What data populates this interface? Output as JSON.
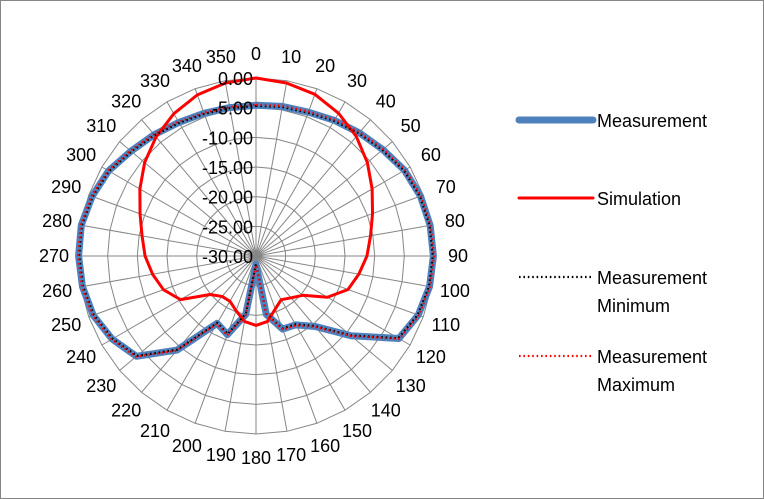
{
  "chart_data": {
    "type": "radar",
    "angles": [
      0,
      10,
      20,
      30,
      40,
      50,
      60,
      70,
      80,
      90,
      100,
      110,
      120,
      130,
      140,
      150,
      160,
      170,
      180,
      190,
      200,
      210,
      220,
      230,
      240,
      250,
      260,
      270,
      280,
      290,
      300,
      310,
      320,
      330,
      340,
      350
    ],
    "angle_labels": [
      "0",
      "10",
      "20",
      "30",
      "40",
      "50",
      "60",
      "70",
      "80",
      "90",
      "100",
      "110",
      "120",
      "130",
      "140",
      "150",
      "160",
      "170",
      "180",
      "190",
      "200",
      "210",
      "220",
      "230",
      "240",
      "250",
      "260",
      "270",
      "280",
      "290",
      "300",
      "310",
      "320",
      "330",
      "340",
      "350"
    ],
    "radial_ticks": [
      -30,
      -25,
      -20,
      -15,
      -10,
      -5,
      0
    ],
    "radial_tick_labels": [
      "-30.00",
      "-25.00",
      "-20.00",
      "-15.00",
      "-10.00",
      "-5.00",
      "0.00"
    ],
    "rlim": [
      -30,
      0
    ],
    "grid": true,
    "legend_position": "right",
    "series": [
      {
        "name": "Measurement",
        "color": "#4f81bd",
        "style": "thick",
        "values": [
          -4.6,
          -4.4,
          -4.2,
          -3.6,
          -2.9,
          -2.1,
          -1.1,
          -0.5,
          -0.2,
          -0.1,
          -0.3,
          -0.9,
          -2.2,
          -9.1,
          -14.5,
          -16.6,
          -16.9,
          -20.0,
          -28.6,
          -20.0,
          -15.9,
          -16.9,
          -9.3,
          -3.7,
          -2.0,
          -0.8,
          -0.3,
          -0.1,
          -0.1,
          -0.6,
          -1.3,
          -2.5,
          -3.3,
          -4.0,
          -4.4,
          -4.6
        ]
      },
      {
        "name": "Simulation",
        "color": "#ff0000",
        "style": "line",
        "values": [
          0.0,
          -0.4,
          -1.0,
          -2.2,
          -3.7,
          -5.5,
          -7.4,
          -9.1,
          -10.4,
          -11.3,
          -12.4,
          -13.5,
          -16.1,
          -19.7,
          -20.8,
          -21.5,
          -20.5,
          -18.8,
          -18.3,
          -18.8,
          -20.2,
          -21.2,
          -21.1,
          -19.9,
          -15.3,
          -13.4,
          -12.3,
          -11.3,
          -10.5,
          -9.2,
          -7.4,
          -5.5,
          -3.8,
          -2.3,
          -1.1,
          -0.4
        ]
      },
      {
        "name": "Measurement Minimum",
        "color": "#000000",
        "style": "dotted",
        "values": [
          -4.7,
          -4.5,
          -4.3,
          -3.7,
          -3.0,
          -2.2,
          -1.2,
          -0.6,
          -0.3,
          -0.2,
          -0.4,
          -1.0,
          -2.3,
          -9.2,
          -14.6,
          -16.7,
          -17.0,
          -20.1,
          -28.7,
          -20.1,
          -16.0,
          -17.0,
          -9.4,
          -3.8,
          -2.1,
          -0.9,
          -0.4,
          -0.2,
          -0.2,
          -0.7,
          -1.4,
          -2.6,
          -3.4,
          -4.1,
          -4.5,
          -4.7
        ]
      },
      {
        "name": "Measurement Maximum",
        "color": "#ff0000",
        "style": "dotted",
        "values": [
          -4.5,
          -4.3,
          -4.1,
          -3.5,
          -2.8,
          -2.0,
          -1.0,
          -0.4,
          -0.1,
          0.0,
          -0.2,
          -0.8,
          -2.1,
          -9.0,
          -14.4,
          -16.5,
          -16.8,
          -19.9,
          -28.5,
          -19.9,
          -15.8,
          -16.8,
          -9.2,
          -3.6,
          -1.9,
          -0.7,
          -0.2,
          0.0,
          0.0,
          -0.5,
          -1.2,
          -2.4,
          -3.2,
          -3.9,
          -4.3,
          -4.5
        ]
      }
    ],
    "legend": [
      {
        "label_lines": [
          "Measurement"
        ]
      },
      {
        "label_lines": [
          "Simulation"
        ]
      },
      {
        "label_lines": [
          "Measurement",
          "Minimum"
        ]
      },
      {
        "label_lines": [
          "Measurement",
          "Maximum"
        ]
      }
    ]
  }
}
